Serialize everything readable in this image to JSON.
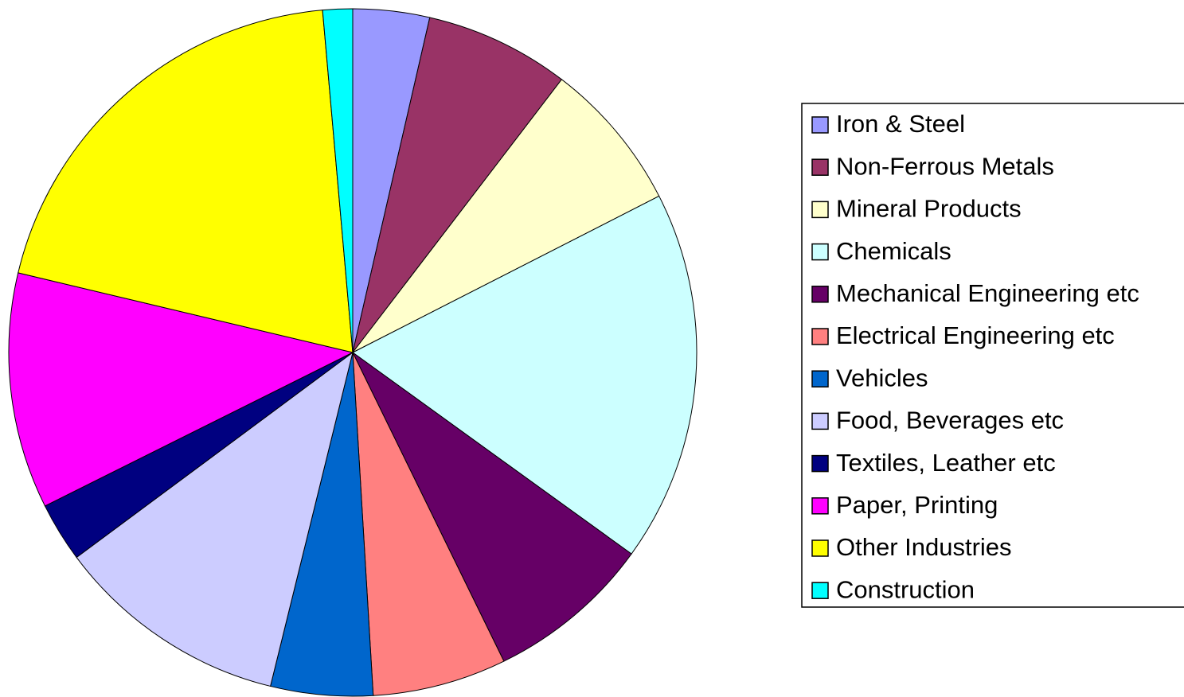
{
  "chart_data": {
    "type": "pie",
    "categories": [
      "Iron & Steel",
      "Non-Ferrous Metals",
      "Mineral Products",
      "Chemicals",
      "Mechanical Engineering etc",
      "Electrical Engineering etc",
      "Vehicles",
      "Food, Beverages etc",
      "Textiles, Leather etc",
      "Paper, Printing",
      "Other Industries",
      "Construction"
    ],
    "values": [
      3.6,
      6.8,
      7.1,
      17.5,
      7.8,
      6.3,
      4.8,
      11.0,
      2.8,
      11.1,
      19.9,
      1.4
    ],
    "colors": [
      "#9999ff",
      "#993366",
      "#ffffcc",
      "#ccffff",
      "#660066",
      "#ff8080",
      "#0066cc",
      "#ccccff",
      "#000080",
      "#ff00ff",
      "#ffff00",
      "#00ffff"
    ],
    "legend": "right"
  }
}
